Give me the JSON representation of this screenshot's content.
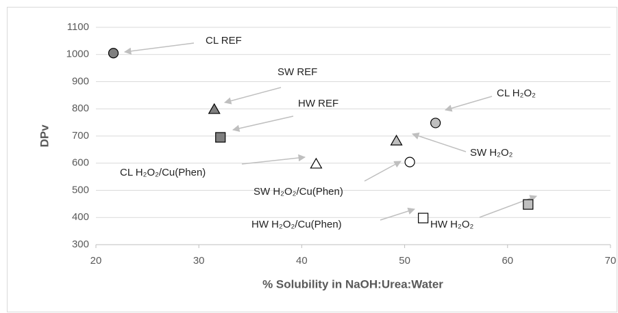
{
  "chart_data": {
    "type": "scatter",
    "xlabel": "% Solubility in NaOH:Urea:Water",
    "ylabel": "DPv",
    "xlim": [
      20,
      70
    ],
    "xticks": [
      20,
      30,
      40,
      50,
      60,
      70
    ],
    "ylim": [
      300,
      1100
    ],
    "yticks": [
      300,
      400,
      500,
      600,
      700,
      800,
      900,
      1000,
      1100
    ],
    "grid": true,
    "series": [
      {
        "name": "CL REF",
        "marker": "circle",
        "color": "#7f7f7f",
        "x": [
          21.7
        ],
        "values": [
          1005
        ]
      },
      {
        "name": "SW REF",
        "marker": "triangle",
        "color": "#7f7f7f",
        "x": [
          31.5
        ],
        "values": [
          798
        ]
      },
      {
        "name": "HW REF",
        "marker": "square",
        "color": "#7f7f7f",
        "x": [
          32.1
        ],
        "values": [
          695
        ]
      },
      {
        "name": "CL H₂O₂",
        "marker": "circle",
        "color": "#bfbfbf",
        "x": [
          53.0
        ],
        "values": [
          748
        ]
      },
      {
        "name": "SW H₂O₂",
        "marker": "triangle",
        "color": "#bfbfbf",
        "x": [
          49.2
        ],
        "values": [
          682
        ]
      },
      {
        "name": "HW H₂O₂",
        "marker": "square",
        "color": "#bfbfbf",
        "x": [
          62.0
        ],
        "values": [
          448
        ]
      },
      {
        "name": "CL H₂O₂/Cu(Phen)",
        "marker": "triangle",
        "color": "#ffffff",
        "x": [
          41.4
        ],
        "values": [
          597
        ]
      },
      {
        "name": "SW H₂O₂/Cu(Phen)",
        "marker": "circle",
        "color": "#ffffff",
        "x": [
          50.5
        ],
        "values": [
          604
        ]
      },
      {
        "name": "HW H₂O₂/Cu(Phen)",
        "marker": "square",
        "color": "#ffffff",
        "x": [
          51.8
        ],
        "values": [
          398
        ]
      }
    ]
  }
}
